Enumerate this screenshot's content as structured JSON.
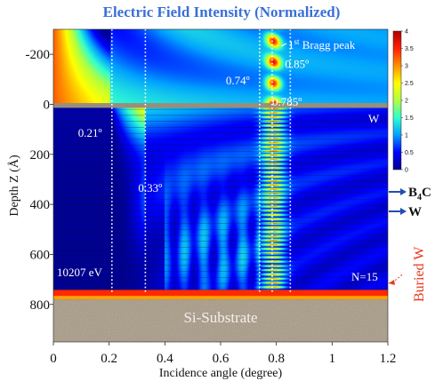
{
  "chart_data": {
    "type": "heatmap",
    "title": "Electric Field Intensity (Normalized)",
    "xlabel": "Incidence angle (degree)",
    "ylabel": "Depth Z (Å)",
    "xlim": [
      0,
      1.2
    ],
    "ylim": [
      -300,
      950
    ],
    "y_inverted": true,
    "x_ticks": [
      "0",
      "0.2",
      "0.4",
      "0.6",
      "0.8",
      "1",
      "1.2"
    ],
    "x_tick_values": [
      0,
      0.2,
      0.4,
      0.6,
      0.8,
      1.0,
      1.2
    ],
    "y_ticks": [
      "-200",
      "0",
      "200",
      "400",
      "600",
      "800"
    ],
    "y_tick_values": [
      -200,
      0,
      200,
      400,
      600,
      800
    ],
    "colorbar": {
      "min": 0,
      "max": 4,
      "ticks": [
        "4",
        "3.5",
        "3",
        "2.5",
        "2",
        "1.5",
        "1",
        "0.5",
        "0"
      ],
      "tick_values": [
        4,
        3.5,
        3,
        2.5,
        2,
        1.5,
        1,
        0.5,
        0
      ]
    },
    "colormap": [
      "#00008f",
      "#0000ff",
      "#00a0ff",
      "#30ffd0",
      "#b0ff40",
      "#ffff00",
      "#ff9000",
      "#ff2000",
      "#b00000"
    ],
    "layers": {
      "surface_depth": 0,
      "multilayer_end_depth": 750,
      "substrate_start_depth": 780
    },
    "critical_angles": [
      {
        "angle": 0.21,
        "label": "0.21º"
      },
      {
        "angle": 0.33,
        "label": "0.33º"
      },
      {
        "angle": 0.74,
        "label": "0.74º"
      },
      {
        "angle": 0.785,
        "label": "0.785º"
      },
      {
        "angle": 0.85,
        "label": "0.85º"
      }
    ],
    "annotations": {
      "bragg_peak": "1st Bragg peak",
      "energy": "10207 eV",
      "periods": "N=15",
      "top_layer": "W",
      "substrate": "Si-Substrate",
      "side_b4c": "B4C",
      "side_w": "W",
      "buried": "Buried W"
    },
    "colors": {
      "title": "#3a6fd8",
      "buried": "#e8371a",
      "arrow": "#1f4fb0",
      "substrate": "#b7aa97",
      "w_layer": "#9a8d7c",
      "buried_layer": "#ff2a00"
    }
  }
}
